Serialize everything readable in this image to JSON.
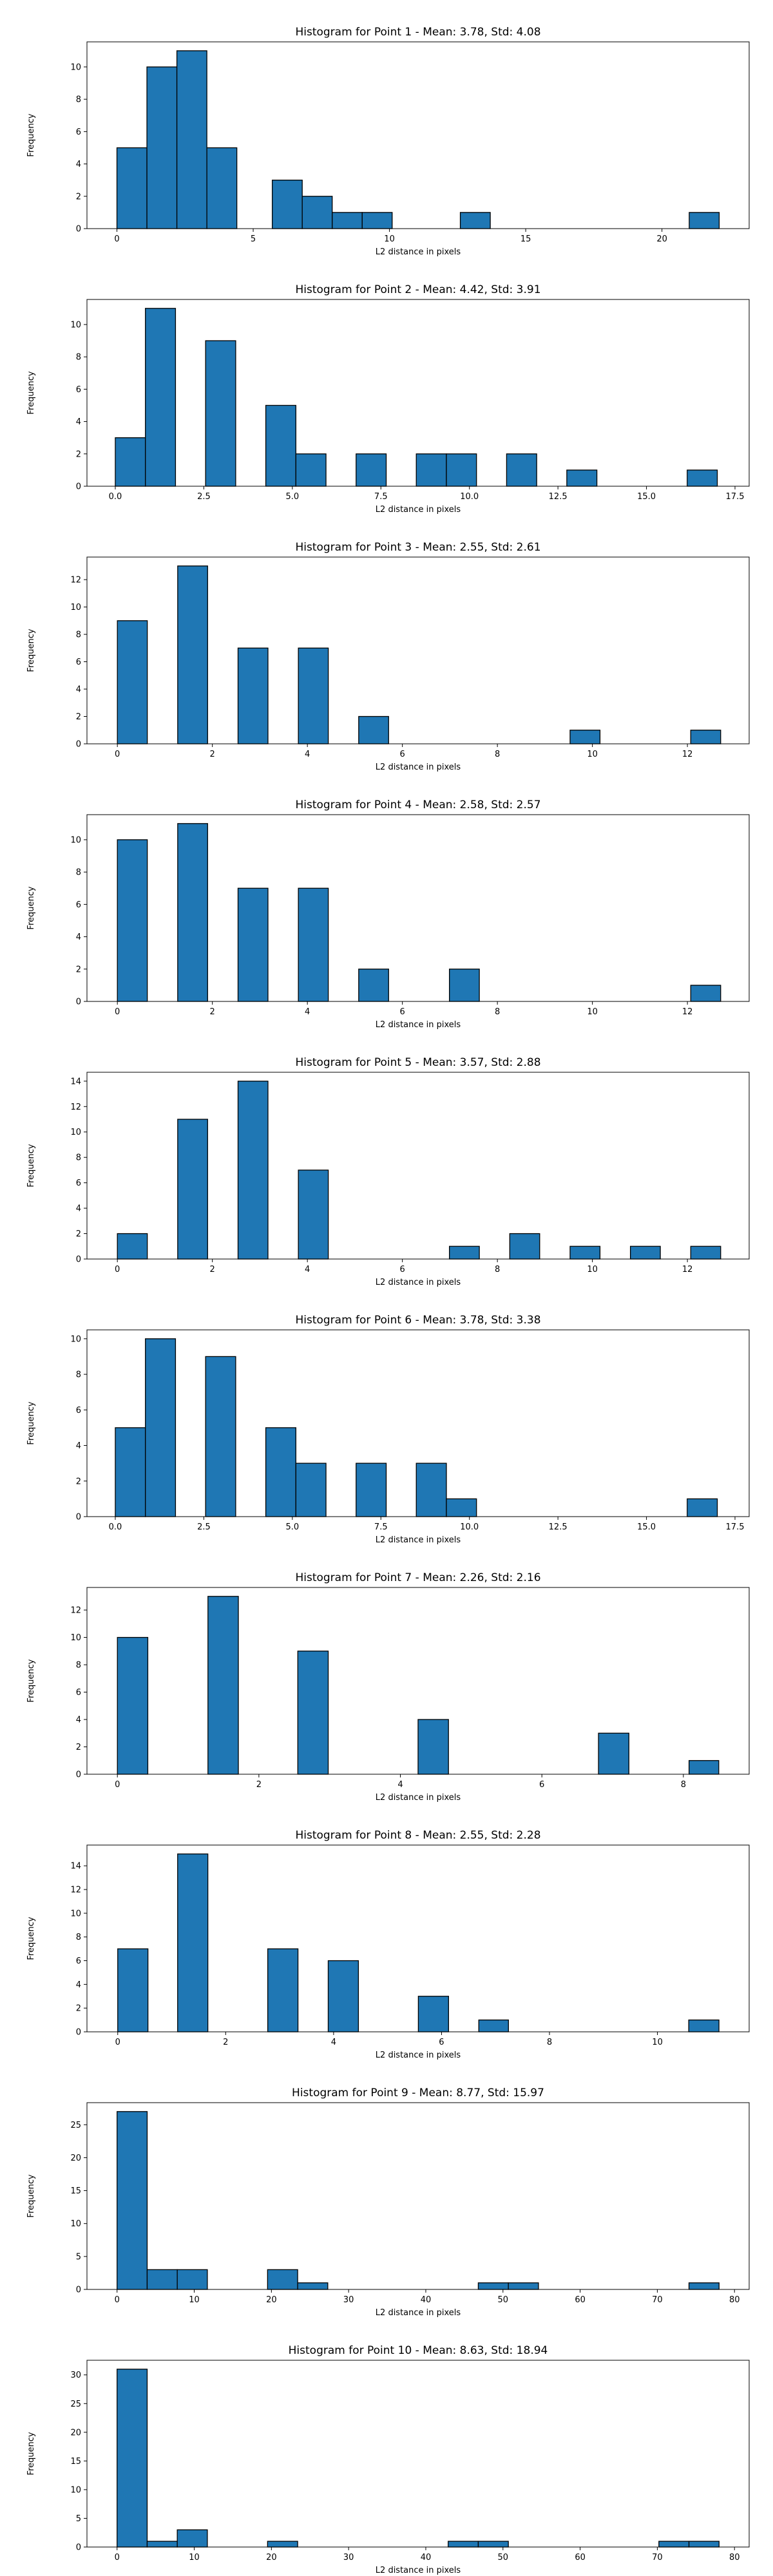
{
  "chart_data": [
    {
      "type": "bar",
      "title": "Histogram for Point 1 - Mean: 3.78, Std: 4.08",
      "xlabel": "L2 distance in pixels",
      "ylabel": "Frequency",
      "xlim": [
        -1.1,
        23.2
      ],
      "ylim": [
        0,
        11.55
      ],
      "xticks": [
        0,
        5,
        10,
        15,
        20
      ],
      "yticks": [
        0,
        2,
        4,
        6,
        8,
        10
      ],
      "bins": [
        {
          "start": 0.0,
          "end": 1.1,
          "value": 5
        },
        {
          "start": 1.1,
          "end": 2.2,
          "value": 10
        },
        {
          "start": 2.2,
          "end": 3.3,
          "value": 11
        },
        {
          "start": 3.3,
          "end": 4.4,
          "value": 5
        },
        {
          "start": 5.7,
          "end": 6.8,
          "value": 3
        },
        {
          "start": 6.8,
          "end": 7.9,
          "value": 2
        },
        {
          "start": 7.9,
          "end": 9.0,
          "value": 1
        },
        {
          "start": 9.0,
          "end": 10.1,
          "value": 1
        },
        {
          "start": 12.6,
          "end": 13.7,
          "value": 1
        },
        {
          "start": 21.0,
          "end": 22.1,
          "value": 1
        }
      ]
    },
    {
      "type": "bar",
      "title": "Histogram for Point 2 - Mean: 4.42, Std: 3.91",
      "xlabel": "L2 distance in pixels",
      "ylabel": "Frequency",
      "xlim": [
        -0.8,
        17.9
      ],
      "ylim": [
        0,
        11.55
      ],
      "xticks": [
        0.0,
        2.5,
        5.0,
        7.5,
        10.0,
        12.5,
        15.0,
        17.5
      ],
      "xtick_labels": [
        "0.0",
        "2.5",
        "5.0",
        "7.5",
        "10.0",
        "12.5",
        "15.0",
        "17.5"
      ],
      "yticks": [
        0,
        2,
        4,
        6,
        8,
        10
      ],
      "bins": [
        {
          "start": 0.0,
          "end": 0.85,
          "value": 3
        },
        {
          "start": 0.85,
          "end": 1.7,
          "value": 11
        },
        {
          "start": 2.55,
          "end": 3.4,
          "value": 9
        },
        {
          "start": 4.25,
          "end": 5.1,
          "value": 5
        },
        {
          "start": 5.1,
          "end": 5.95,
          "value": 2
        },
        {
          "start": 6.8,
          "end": 7.65,
          "value": 2
        },
        {
          "start": 8.5,
          "end": 9.35,
          "value": 2
        },
        {
          "start": 9.35,
          "end": 10.2,
          "value": 2
        },
        {
          "start": 11.05,
          "end": 11.9,
          "value": 2
        },
        {
          "start": 12.75,
          "end": 13.6,
          "value": 1
        },
        {
          "start": 16.15,
          "end": 17.0,
          "value": 1
        }
      ]
    },
    {
      "type": "bar",
      "title": "Histogram for Point 3 - Mean: 2.55, Std: 2.61",
      "xlabel": "L2 distance in pixels",
      "ylabel": "Frequency",
      "xlim": [
        -0.64,
        13.3
      ],
      "ylim": [
        0,
        13.65
      ],
      "xticks": [
        0,
        2,
        4,
        6,
        8,
        10,
        12
      ],
      "yticks": [
        0,
        2,
        4,
        6,
        8,
        10,
        12
      ],
      "bins": [
        {
          "start": 0.0,
          "end": 0.63,
          "value": 9
        },
        {
          "start": 1.27,
          "end": 1.9,
          "value": 13
        },
        {
          "start": 2.54,
          "end": 3.17,
          "value": 7
        },
        {
          "start": 3.81,
          "end": 4.44,
          "value": 7
        },
        {
          "start": 5.08,
          "end": 5.71,
          "value": 2
        },
        {
          "start": 9.53,
          "end": 10.16,
          "value": 1
        },
        {
          "start": 12.07,
          "end": 12.7,
          "value": 1
        }
      ]
    },
    {
      "type": "bar",
      "title": "Histogram for Point 4 - Mean: 2.58, Std: 2.57",
      "xlabel": "L2 distance in pixels",
      "ylabel": "Frequency",
      "xlim": [
        -0.64,
        13.3
      ],
      "ylim": [
        0,
        11.55
      ],
      "xticks": [
        0,
        2,
        4,
        6,
        8,
        10,
        12
      ],
      "yticks": [
        0,
        2,
        4,
        6,
        8,
        10
      ],
      "bins": [
        {
          "start": 0.0,
          "end": 0.63,
          "value": 10
        },
        {
          "start": 1.27,
          "end": 1.9,
          "value": 11
        },
        {
          "start": 2.54,
          "end": 3.17,
          "value": 7
        },
        {
          "start": 3.81,
          "end": 4.44,
          "value": 7
        },
        {
          "start": 5.08,
          "end": 5.71,
          "value": 2
        },
        {
          "start": 6.99,
          "end": 7.62,
          "value": 2
        },
        {
          "start": 12.07,
          "end": 12.7,
          "value": 1
        }
      ]
    },
    {
      "type": "bar",
      "title": "Histogram for Point 5 - Mean: 3.57, Std: 2.88",
      "xlabel": "L2 distance in pixels",
      "ylabel": "Frequency",
      "xlim": [
        -0.64,
        13.3
      ],
      "ylim": [
        0,
        14.7
      ],
      "xticks": [
        0,
        2,
        4,
        6,
        8,
        10,
        12
      ],
      "yticks": [
        0,
        2,
        4,
        6,
        8,
        10,
        12,
        14
      ],
      "bins": [
        {
          "start": 0.0,
          "end": 0.63,
          "value": 2
        },
        {
          "start": 1.27,
          "end": 1.9,
          "value": 11
        },
        {
          "start": 2.54,
          "end": 3.17,
          "value": 14
        },
        {
          "start": 3.81,
          "end": 4.44,
          "value": 7
        },
        {
          "start": 6.99,
          "end": 7.62,
          "value": 1
        },
        {
          "start": 8.26,
          "end": 8.89,
          "value": 2
        },
        {
          "start": 9.53,
          "end": 10.16,
          "value": 1
        },
        {
          "start": 10.8,
          "end": 11.43,
          "value": 1
        },
        {
          "start": 12.07,
          "end": 12.7,
          "value": 1
        }
      ]
    },
    {
      "type": "bar",
      "title": "Histogram for Point 6 - Mean: 3.78, Std: 3.38",
      "xlabel": "L2 distance in pixels",
      "ylabel": "Frequency",
      "xlim": [
        -0.8,
        17.9
      ],
      "ylim": [
        0,
        10.5
      ],
      "xticks": [
        0.0,
        2.5,
        5.0,
        7.5,
        10.0,
        12.5,
        15.0,
        17.5
      ],
      "xtick_labels": [
        "0.0",
        "2.5",
        "5.0",
        "7.5",
        "10.0",
        "12.5",
        "15.0",
        "17.5"
      ],
      "yticks": [
        0,
        2,
        4,
        6,
        8,
        10
      ],
      "bins": [
        {
          "start": 0.0,
          "end": 0.85,
          "value": 5
        },
        {
          "start": 0.85,
          "end": 1.7,
          "value": 10
        },
        {
          "start": 2.55,
          "end": 3.4,
          "value": 9
        },
        {
          "start": 4.25,
          "end": 5.1,
          "value": 5
        },
        {
          "start": 5.1,
          "end": 5.95,
          "value": 3
        },
        {
          "start": 6.8,
          "end": 7.65,
          "value": 3
        },
        {
          "start": 8.5,
          "end": 9.35,
          "value": 3
        },
        {
          "start": 9.35,
          "end": 10.2,
          "value": 1
        },
        {
          "start": 16.15,
          "end": 17.0,
          "value": 1
        }
      ]
    },
    {
      "type": "bar",
      "title": "Histogram for Point 7 - Mean: 2.26, Std: 2.16",
      "xlabel": "L2 distance in pixels",
      "ylabel": "Frequency",
      "xlim": [
        -0.43,
        8.93
      ],
      "ylim": [
        0,
        13.65
      ],
      "xticks": [
        0,
        2,
        4,
        6,
        8
      ],
      "yticks": [
        0,
        2,
        4,
        6,
        8,
        10,
        12
      ],
      "bins": [
        {
          "start": 0.0,
          "end": 0.43,
          "value": 10
        },
        {
          "start": 1.28,
          "end": 1.71,
          "value": 13
        },
        {
          "start": 2.55,
          "end": 2.98,
          "value": 9
        },
        {
          "start": 4.25,
          "end": 4.68,
          "value": 4
        },
        {
          "start": 6.8,
          "end": 7.23,
          "value": 3
        },
        {
          "start": 8.08,
          "end": 8.5,
          "value": 1
        }
      ]
    },
    {
      "type": "bar",
      "title": "Histogram for Point 8 - Mean: 2.55, Std: 2.28",
      "xlabel": "L2 distance in pixels",
      "ylabel": "Frequency",
      "xlim": [
        -0.57,
        11.7
      ],
      "ylim": [
        0,
        15.75
      ],
      "xticks": [
        0,
        2,
        4,
        6,
        8,
        10
      ],
      "yticks": [
        0,
        2,
        4,
        6,
        8,
        10,
        12,
        14
      ],
      "bins": [
        {
          "start": 0.0,
          "end": 0.56,
          "value": 7
        },
        {
          "start": 1.11,
          "end": 1.67,
          "value": 15
        },
        {
          "start": 2.78,
          "end": 3.34,
          "value": 7
        },
        {
          "start": 3.9,
          "end": 4.46,
          "value": 6
        },
        {
          "start": 5.57,
          "end": 6.13,
          "value": 3
        },
        {
          "start": 6.69,
          "end": 7.24,
          "value": 1
        },
        {
          "start": 10.58,
          "end": 11.14,
          "value": 1
        }
      ]
    },
    {
      "type": "bar",
      "title": "Histogram for Point 9 - Mean: 8.77, Std: 15.97",
      "xlabel": "L2 distance in pixels",
      "ylabel": "Frequency",
      "xlim": [
        -3.9,
        81.9
      ],
      "ylim": [
        0,
        28.35
      ],
      "xticks": [
        0,
        10,
        20,
        30,
        40,
        50,
        60,
        70,
        80
      ],
      "yticks": [
        0,
        5,
        10,
        15,
        20,
        25
      ],
      "bins": [
        {
          "start": 0.0,
          "end": 3.9,
          "value": 27
        },
        {
          "start": 3.9,
          "end": 7.8,
          "value": 3
        },
        {
          "start": 7.8,
          "end": 11.7,
          "value": 3
        },
        {
          "start": 19.5,
          "end": 23.4,
          "value": 3
        },
        {
          "start": 23.4,
          "end": 27.3,
          "value": 1
        },
        {
          "start": 46.8,
          "end": 50.7,
          "value": 1
        },
        {
          "start": 50.7,
          "end": 54.6,
          "value": 1
        },
        {
          "start": 74.1,
          "end": 78.0,
          "value": 1
        }
      ]
    },
    {
      "type": "bar",
      "title": "Histogram for Point 10 - Mean: 8.63, Std: 18.94",
      "xlabel": "L2 distance in pixels",
      "ylabel": "Frequency",
      "xlim": [
        -3.9,
        81.9
      ],
      "ylim": [
        0,
        32.55
      ],
      "xticks": [
        0,
        10,
        20,
        30,
        40,
        50,
        60,
        70,
        80
      ],
      "yticks": [
        0,
        5,
        10,
        15,
        20,
        25,
        30
      ],
      "bins": [
        {
          "start": 0.0,
          "end": 3.9,
          "value": 31
        },
        {
          "start": 3.9,
          "end": 7.8,
          "value": 1
        },
        {
          "start": 7.8,
          "end": 11.7,
          "value": 3
        },
        {
          "start": 19.5,
          "end": 23.4,
          "value": 1
        },
        {
          "start": 42.9,
          "end": 46.8,
          "value": 1
        },
        {
          "start": 46.8,
          "end": 50.7,
          "value": 1
        },
        {
          "start": 70.2,
          "end": 74.1,
          "value": 1
        },
        {
          "start": 74.1,
          "end": 78.0,
          "value": 1
        }
      ]
    }
  ],
  "style": {
    "bar_fill": "#1f77b4",
    "bar_edge": "#000000",
    "axes_edge": "#000000"
  }
}
